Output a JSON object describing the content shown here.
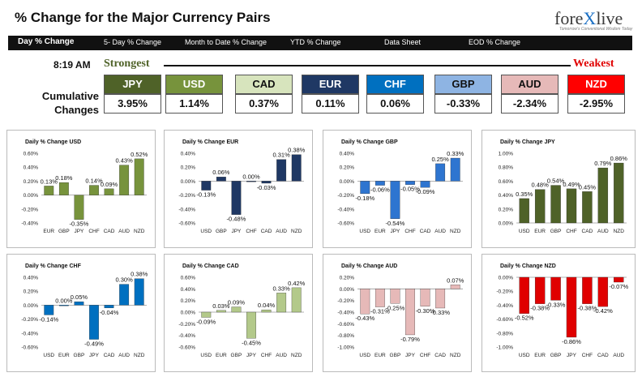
{
  "header": {
    "title": "% Change for the Major Currency Pairs",
    "logo_a": "fore",
    "logo_x": "X",
    "logo_b": "live",
    "tagline": "Tomorrow's Conventional Wisdom Today"
  },
  "nav": {
    "items": [
      "Day % Change",
      "5- Day % Change",
      "Month to Date % Change",
      "YTD % Change",
      "Data Sheet",
      "EOD % Change"
    ]
  },
  "summary": {
    "time": "8:19 AM",
    "strongest_label": "Strongest",
    "weakest_label": "Weakest",
    "cumulative_label_1": "Cumulative",
    "cumulative_label_2": "Changes",
    "currencies": [
      {
        "code": "JPY",
        "value": "3.95%",
        "bg": "#4f6228",
        "fg": "#ffffff"
      },
      {
        "code": "USD",
        "value": "1.14%",
        "bg": "#77933c",
        "fg": "#ffffff"
      },
      {
        "code": "CAD",
        "value": "0.37%",
        "bg": "#d7e4bd",
        "fg": "#111111"
      },
      {
        "code": "EUR",
        "value": "0.11%",
        "bg": "#1f3864",
        "fg": "#ffffff"
      },
      {
        "code": "CHF",
        "value": "0.06%",
        "bg": "#0070c0",
        "fg": "#ffffff"
      },
      {
        "code": "GBP",
        "value": "-0.33%",
        "bg": "#8eb4e3",
        "fg": "#111111"
      },
      {
        "code": "AUD",
        "value": "-2.34%",
        "bg": "#e6b9b8",
        "fg": "#111111"
      },
      {
        "code": "NZD",
        "value": "-2.95%",
        "bg": "#ff0000",
        "fg": "#ffffff"
      }
    ]
  },
  "chart_data": [
    {
      "type": "bar",
      "title": "Daily % Change USD",
      "color": "#77933c",
      "categories": [
        "EUR",
        "GBP",
        "JPY",
        "CHF",
        "CAD",
        "AUD",
        "NZD"
      ],
      "values": [
        0.13,
        0.18,
        -0.35,
        0.14,
        0.09,
        0.43,
        0.52
      ],
      "labels": [
        "0.13%",
        "0.18%",
        "-0.35%",
        "0.14%",
        "0.09%",
        "0.43%",
        "0.52%"
      ],
      "ylim": [
        -0.4,
        0.6
      ],
      "ticks": [
        -0.4,
        -0.2,
        0,
        0.2,
        0.4,
        0.6
      ],
      "tick_labels": [
        "-0.40%",
        "-0.20%",
        "0.00%",
        "0.20%",
        "0.40%",
        "0.60%"
      ]
    },
    {
      "type": "bar",
      "title": "Daily % Change EUR",
      "color": "#1f3864",
      "categories": [
        "USD",
        "GBP",
        "JPY",
        "CHF",
        "CAD",
        "AUD",
        "NZD"
      ],
      "values": [
        -0.13,
        0.06,
        -0.48,
        0.0,
        -0.03,
        0.31,
        0.38
      ],
      "labels": [
        "-0.13%",
        "0.06%",
        "-0.48%",
        "0.00%",
        "-0.03%",
        "0.31%",
        "0.38%"
      ],
      "ylim": [
        -0.6,
        0.4
      ],
      "ticks": [
        -0.6,
        -0.4,
        -0.2,
        0,
        0.2,
        0.4
      ],
      "tick_labels": [
        "-0.60%",
        "-0.40%",
        "-0.20%",
        "0.00%",
        "0.20%",
        "0.40%"
      ]
    },
    {
      "type": "bar",
      "title": "Daily % Change GBP",
      "color": "#2e75d0",
      "categories": [
        "USD",
        "EUR",
        "JPY",
        "CHF",
        "CAD",
        "AUD",
        "NZD"
      ],
      "values": [
        -0.18,
        -0.06,
        -0.54,
        -0.05,
        -0.09,
        0.25,
        0.33
      ],
      "labels": [
        "-0.18%",
        "-0.06%",
        "-0.54%",
        "-0.05%",
        "-0.09%",
        "0.25%",
        "0.33%"
      ],
      "ylim": [
        -0.6,
        0.4
      ],
      "ticks": [
        -0.6,
        -0.4,
        -0.2,
        0,
        0.2,
        0.4
      ],
      "tick_labels": [
        "-0.60%",
        "-0.40%",
        "-0.20%",
        "0.00%",
        "0.20%",
        "0.40%"
      ]
    },
    {
      "type": "bar",
      "title": "Daily % Change JPY",
      "color": "#4f6228",
      "categories": [
        "USD",
        "EUR",
        "GBP",
        "CHF",
        "CAD",
        "AUD",
        "NZD"
      ],
      "values": [
        0.35,
        0.48,
        0.54,
        0.49,
        0.45,
        0.79,
        0.86
      ],
      "labels": [
        "0.35%",
        "0.48%",
        "0.54%",
        "0.49%",
        "0.45%",
        "0.79%",
        "0.86%"
      ],
      "ylim": [
        0,
        1.0
      ],
      "ticks": [
        0,
        0.2,
        0.4,
        0.6,
        0.8,
        1.0
      ],
      "tick_labels": [
        "0.00%",
        "0.20%",
        "0.40%",
        "0.60%",
        "0.80%",
        "1.00%"
      ]
    },
    {
      "type": "bar",
      "title": "Daily % Change CHF",
      "color": "#0070c0",
      "categories": [
        "USD",
        "EUR",
        "GBP",
        "JPY",
        "CAD",
        "AUD",
        "NZD"
      ],
      "values": [
        -0.14,
        0.0,
        0.05,
        -0.49,
        -0.04,
        0.3,
        0.38
      ],
      "labels": [
        "-0.14%",
        "0.00%",
        "0.05%",
        "-0.49%",
        "-0.04%",
        "0.30%",
        "0.38%"
      ],
      "ylim": [
        -0.6,
        0.4
      ],
      "ticks": [
        -0.6,
        -0.4,
        -0.2,
        0,
        0.2,
        0.4
      ],
      "tick_labels": [
        "-0.60%",
        "-0.40%",
        "-0.20%",
        "0.00%",
        "0.20%",
        "0.40%"
      ]
    },
    {
      "type": "bar",
      "title": "Daily % Change CAD",
      "color": "#b3c98a",
      "categories": [
        "USD",
        "EUR",
        "GBP",
        "JPY",
        "CHF",
        "AUD",
        "NZD"
      ],
      "values": [
        -0.09,
        0.03,
        0.09,
        -0.45,
        0.04,
        0.33,
        0.42
      ],
      "labels": [
        "-0.09%",
        "0.03%",
        "0.09%",
        "-0.45%",
        "0.04%",
        "0.33%",
        "0.42%"
      ],
      "ylim": [
        -0.6,
        0.6
      ],
      "ticks": [
        -0.6,
        -0.4,
        -0.2,
        0,
        0.2,
        0.4,
        0.6
      ],
      "tick_labels": [
        "-0.60%",
        "-0.40%",
        "-0.20%",
        "0.00%",
        "0.20%",
        "0.40%",
        "0.60%"
      ]
    },
    {
      "type": "bar",
      "title": "Daily % Change AUD",
      "color": "#e6b9b8",
      "categories": [
        "USD",
        "EUR",
        "GBP",
        "JPY",
        "CHF",
        "CAD",
        "NZD"
      ],
      "values": [
        -0.43,
        -0.31,
        -0.25,
        -0.79,
        -0.3,
        -0.33,
        0.07
      ],
      "labels": [
        "-0.43%",
        "-0.31%",
        "-0.25%",
        "-0.79%",
        "-0.30%",
        "-0.33%",
        "0.07%"
      ],
      "ylim": [
        -1.0,
        0.2
      ],
      "ticks": [
        -1.0,
        -0.8,
        -0.6,
        -0.4,
        -0.2,
        0,
        0.2
      ],
      "tick_labels": [
        "-1.00%",
        "-0.80%",
        "-0.60%",
        "-0.40%",
        "-0.20%",
        "0.00%",
        "0.20%"
      ]
    },
    {
      "type": "bar",
      "title": "Daily % Change NZD",
      "color": "#e00000",
      "categories": [
        "USD",
        "EUR",
        "GBP",
        "JPY",
        "CHF",
        "CAD",
        "AUD"
      ],
      "values": [
        -0.52,
        -0.38,
        -0.33,
        -0.86,
        -0.38,
        -0.42,
        -0.07
      ],
      "labels": [
        "-0.52%",
        "-0.38%",
        "-0.33%",
        "-0.86%",
        "-0.38%",
        "-0.42%",
        "-0.07%"
      ],
      "ylim": [
        -1.0,
        0
      ],
      "ticks": [
        -1.0,
        -0.8,
        -0.6,
        -0.4,
        -0.2,
        0
      ],
      "tick_labels": [
        "-1.00%",
        "-0.80%",
        "-0.60%",
        "-0.40%",
        "-0.20%",
        "0.00%"
      ]
    }
  ]
}
